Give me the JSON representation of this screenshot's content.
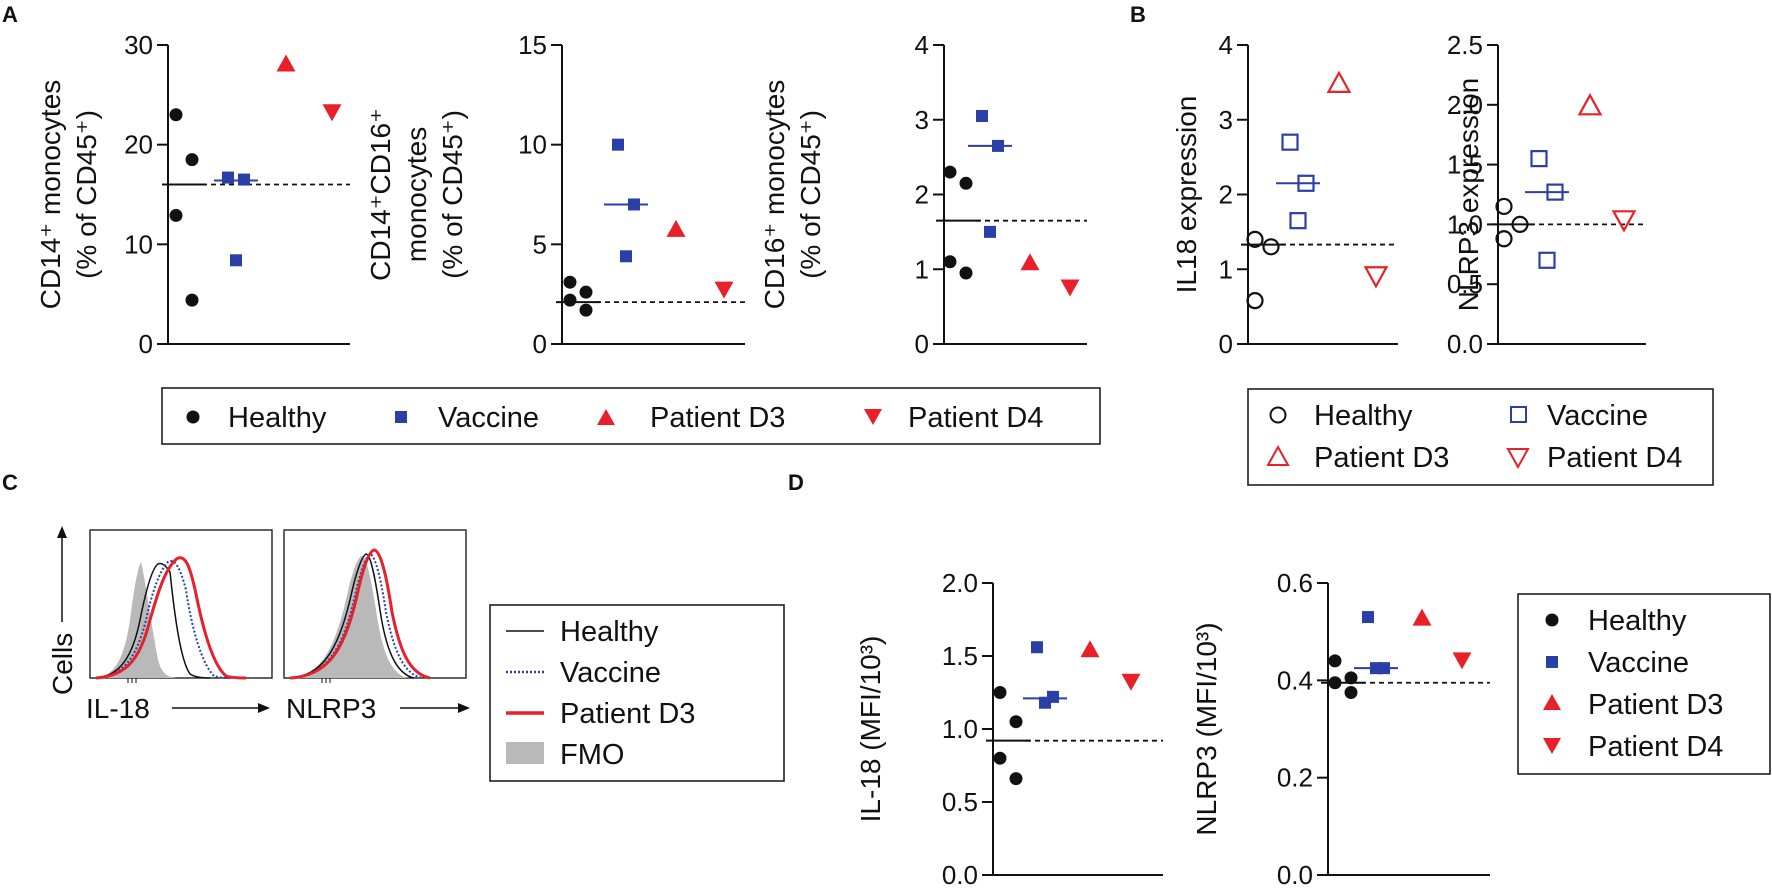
{
  "colors": {
    "healthy": "#111111",
    "vaccine": "#2b3fa8",
    "patient": "#e8202a",
    "fmo": "#b9b9b9"
  },
  "panel_labels": [
    "A",
    "B",
    "C",
    "D"
  ],
  "legends": {
    "A": [
      "Healthy",
      "Vaccine",
      "Patient D3",
      "Patient D4"
    ],
    "B": [
      "Healthy",
      "Vaccine",
      "Patient D3",
      "Patient D4"
    ],
    "C": [
      "Healthy",
      "Vaccine",
      "Patient D3",
      "FMO"
    ],
    "D": [
      "Healthy",
      "Vaccine",
      "Patient D3",
      "Patient D4"
    ]
  },
  "histograms": {
    "ylabel": "Cells",
    "xlabels": [
      "IL-18",
      "NLRP3"
    ]
  },
  "chart_data": [
    {
      "id": "A1",
      "type": "scatter",
      "title": "",
      "xlabel": "",
      "ylabel": [
        "CD14⁺ monocytes",
        "(% of CD45⁺)"
      ],
      "ylim": [
        0,
        30
      ],
      "yticks": [
        "0",
        "10",
        "20",
        "30"
      ],
      "baseline": 16,
      "groups": [
        {
          "name": "Healthy",
          "values": [
            23,
            18.5,
            12.9,
            4.4
          ],
          "mean": 16
        },
        {
          "name": "Vaccine",
          "values": [
            16.7,
            16.5,
            8.4
          ],
          "mean": 16.4
        },
        {
          "name": "Patient D3",
          "values": [
            28.2
          ]
        },
        {
          "name": "Patient D4",
          "values": [
            23.2
          ]
        }
      ]
    },
    {
      "id": "A2",
      "type": "scatter",
      "title": "",
      "xlabel": "",
      "ylabel": [
        "CD14⁺CD16⁺",
        "monocytes",
        "(% of CD45⁺)"
      ],
      "ylim": [
        0,
        15
      ],
      "yticks": [
        "0",
        "5",
        "10",
        "15"
      ],
      "baseline": 2.1,
      "groups": [
        {
          "name": "Healthy",
          "values": [
            3.1,
            2.6,
            2.2,
            1.7
          ],
          "mean": 2.1
        },
        {
          "name": "Vaccine",
          "values": [
            10,
            7,
            4.4
          ],
          "mean": 7
        },
        {
          "name": "Patient D3",
          "values": [
            5.8
          ]
        },
        {
          "name": "Patient D4",
          "values": [
            2.7
          ]
        }
      ]
    },
    {
      "id": "A3",
      "type": "scatter",
      "title": "",
      "xlabel": "",
      "ylabel": [
        "CD16⁺ monocytes",
        "(% of CD45⁺)"
      ],
      "ylim": [
        0,
        4
      ],
      "yticks": [
        "0",
        "1",
        "2",
        "3",
        "4"
      ],
      "baseline": 1.65,
      "groups": [
        {
          "name": "Healthy",
          "values": [
            2.3,
            2.15,
            1.1,
            0.95
          ],
          "mean": 1.65
        },
        {
          "name": "Vaccine",
          "values": [
            3.05,
            2.65,
            1.5
          ],
          "mean": 2.65
        },
        {
          "name": "Patient D3",
          "values": [
            1.1
          ]
        },
        {
          "name": "Patient D4",
          "values": [
            0.75
          ]
        }
      ]
    },
    {
      "id": "B1",
      "type": "scatter",
      "title": "",
      "xlabel": "",
      "ylabel": [
        "IL18 expression"
      ],
      "ylim": [
        0,
        4
      ],
      "yticks": [
        "0",
        "1",
        "2",
        "3",
        "4"
      ],
      "baseline": 1.33,
      "groups": [
        {
          "name": "Healthy",
          "values": [
            1.4,
            1.3,
            0.58
          ],
          "mean": 1.33
        },
        {
          "name": "Vaccine",
          "values": [
            2.7,
            2.15,
            1.65
          ],
          "mean": 2.15
        },
        {
          "name": "Patient D3",
          "values": [
            3.5
          ]
        },
        {
          "name": "Patient D4",
          "values": [
            0.9
          ]
        }
      ]
    },
    {
      "id": "B2",
      "type": "scatter",
      "title": "",
      "xlabel": "",
      "ylabel": [
        "NLRP3 expression"
      ],
      "ylim": [
        0,
        2.5
      ],
      "yticks": [
        "0.0",
        "0.5",
        "1.0",
        "1.5",
        "2.0",
        "2.5"
      ],
      "baseline": 1.0,
      "groups": [
        {
          "name": "Healthy",
          "values": [
            1.15,
            1.0,
            0.88
          ],
          "mean": 1.0
        },
        {
          "name": "Vaccine",
          "values": [
            1.55,
            1.27,
            0.7
          ],
          "mean": 1.27
        },
        {
          "name": "Patient D3",
          "values": [
            2.0
          ]
        },
        {
          "name": "Patient D4",
          "values": [
            1.03
          ]
        }
      ]
    },
    {
      "id": "D1",
      "type": "scatter",
      "title": "",
      "xlabel": "",
      "ylabel": [
        "IL-18 (MFI/10³)"
      ],
      "ylim": [
        0,
        2.0
      ],
      "yticks": [
        "0.0",
        "0.5",
        "1.0",
        "1.5",
        "2.0"
      ],
      "baseline": 0.92,
      "groups": [
        {
          "name": "Healthy",
          "values": [
            1.25,
            1.05,
            0.8,
            0.66
          ],
          "mean": 0.92
        },
        {
          "name": "Vaccine",
          "values": [
            1.56,
            1.22,
            1.18
          ],
          "mean": 1.21
        },
        {
          "name": "Patient D3",
          "values": [
            1.55
          ]
        },
        {
          "name": "Patient D4",
          "values": [
            1.32
          ]
        }
      ]
    },
    {
      "id": "D2",
      "type": "scatter",
      "title": "",
      "xlabel": "",
      "ylabel": [
        "NLRP3 (MFI/10³)"
      ],
      "ylim": [
        0,
        0.6
      ],
      "yticks": [
        "0.0",
        "0.2",
        "0.4",
        "0.6"
      ],
      "baseline": 0.395,
      "groups": [
        {
          "name": "Healthy",
          "values": [
            0.44,
            0.405,
            0.395,
            0.375
          ],
          "mean": 0.395
        },
        {
          "name": "Vaccine",
          "values": [
            0.53,
            0.425,
            0.425
          ],
          "mean": 0.425
        },
        {
          "name": "Patient D3",
          "values": [
            0.53
          ]
        },
        {
          "name": "Patient D4",
          "values": [
            0.44
          ]
        }
      ]
    }
  ]
}
